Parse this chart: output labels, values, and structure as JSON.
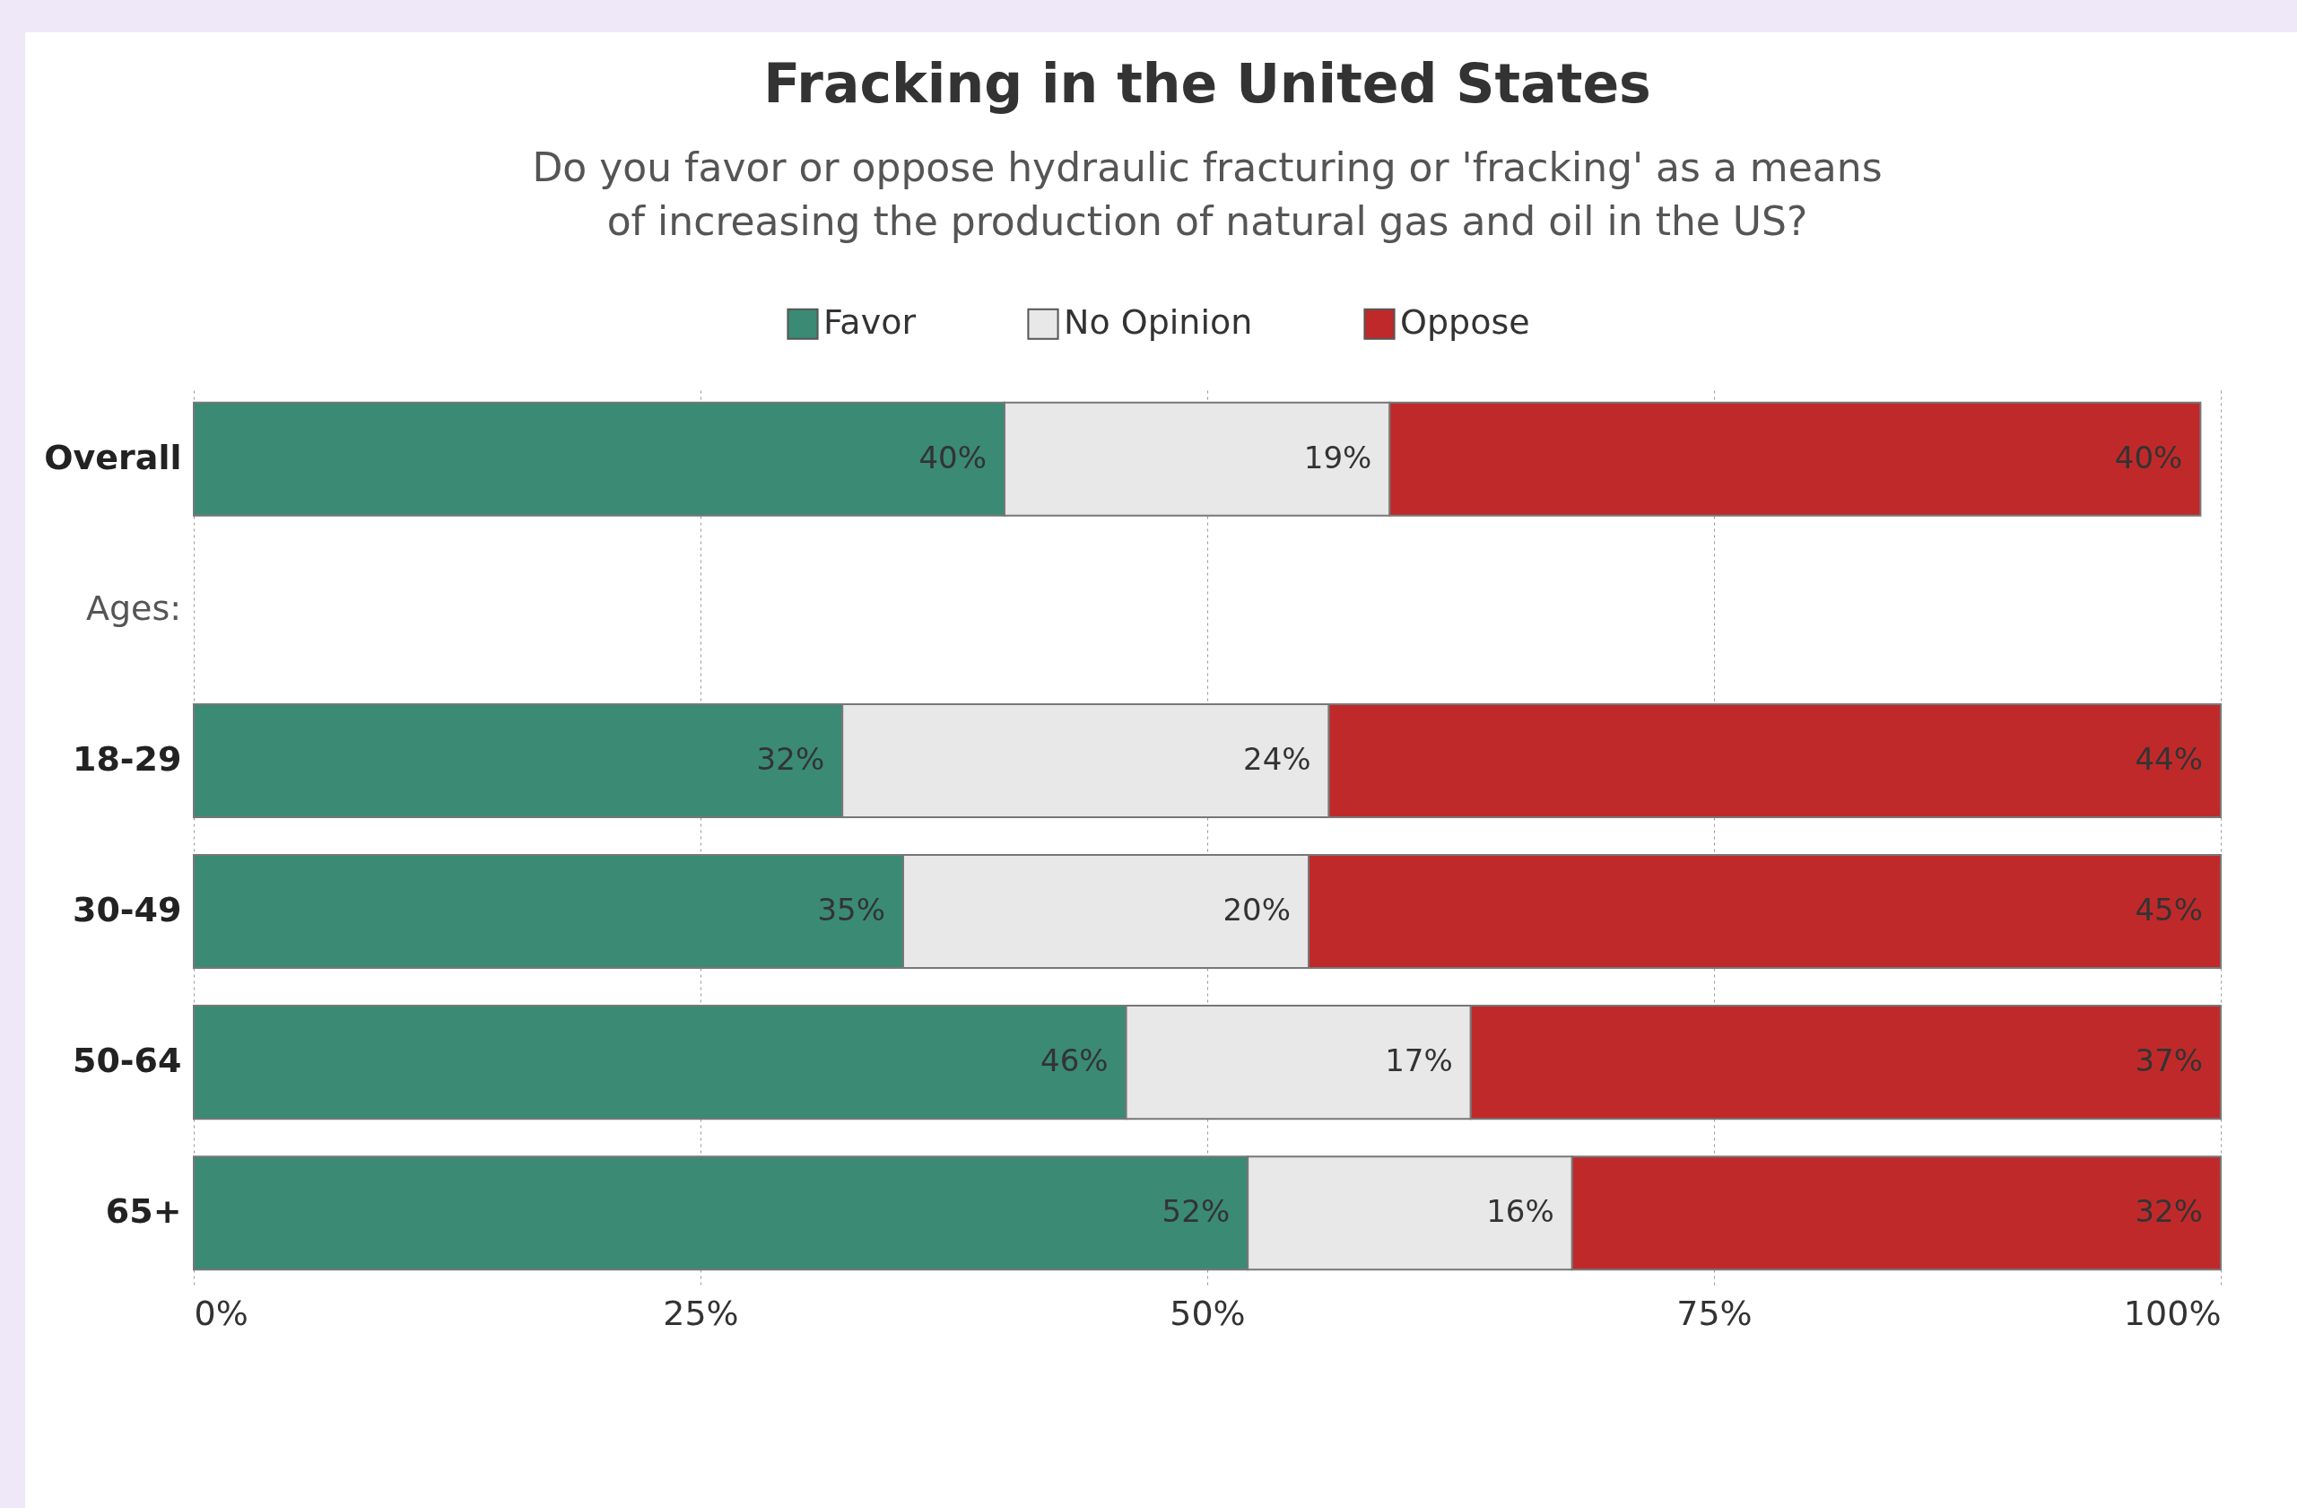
{
  "chart_data": {
    "type": "bar",
    "orientation": "horizontal",
    "stacked": true,
    "title": "Fracking in the United States",
    "subtitle": "Do you favor or oppose hydraulic fracturing or 'fracking' as a means\nof increasing the production of natural gas and oil in the US?",
    "categories": [
      "Overall",
      null,
      "18-29",
      "30-49",
      "50-64",
      "65+"
    ],
    "annotations": [
      "Ages:"
    ],
    "series": [
      {
        "name": "Favor",
        "color": "#3a8a74",
        "values": [
          40,
          null,
          32,
          35,
          46,
          52
        ],
        "value_labels": [
          "40%",
          null,
          "32%",
          "35%",
          "46%",
          "52%"
        ]
      },
      {
        "name": "No Opinion",
        "color": "#e8e8e8",
        "values": [
          19,
          null,
          24,
          20,
          17,
          16
        ],
        "value_labels": [
          "19%",
          null,
          "24%",
          "20%",
          "17%",
          "16%"
        ]
      },
      {
        "name": "Oppose",
        "color": "#c0292a",
        "values": [
          40,
          null,
          44,
          45,
          37,
          32
        ],
        "value_labels": [
          "40%",
          null,
          "44%",
          "45%",
          "37%",
          "32%"
        ]
      }
    ],
    "xlim": [
      0,
      100
    ],
    "xticks": [
      {
        "value": 0,
        "label": "0%"
      },
      {
        "value": 25,
        "label": "25%"
      },
      {
        "value": 50,
        "label": "50%"
      },
      {
        "value": 75,
        "label": "75%"
      },
      {
        "value": 100,
        "label": "100%"
      }
    ],
    "grid": "x",
    "legend": "top"
  }
}
